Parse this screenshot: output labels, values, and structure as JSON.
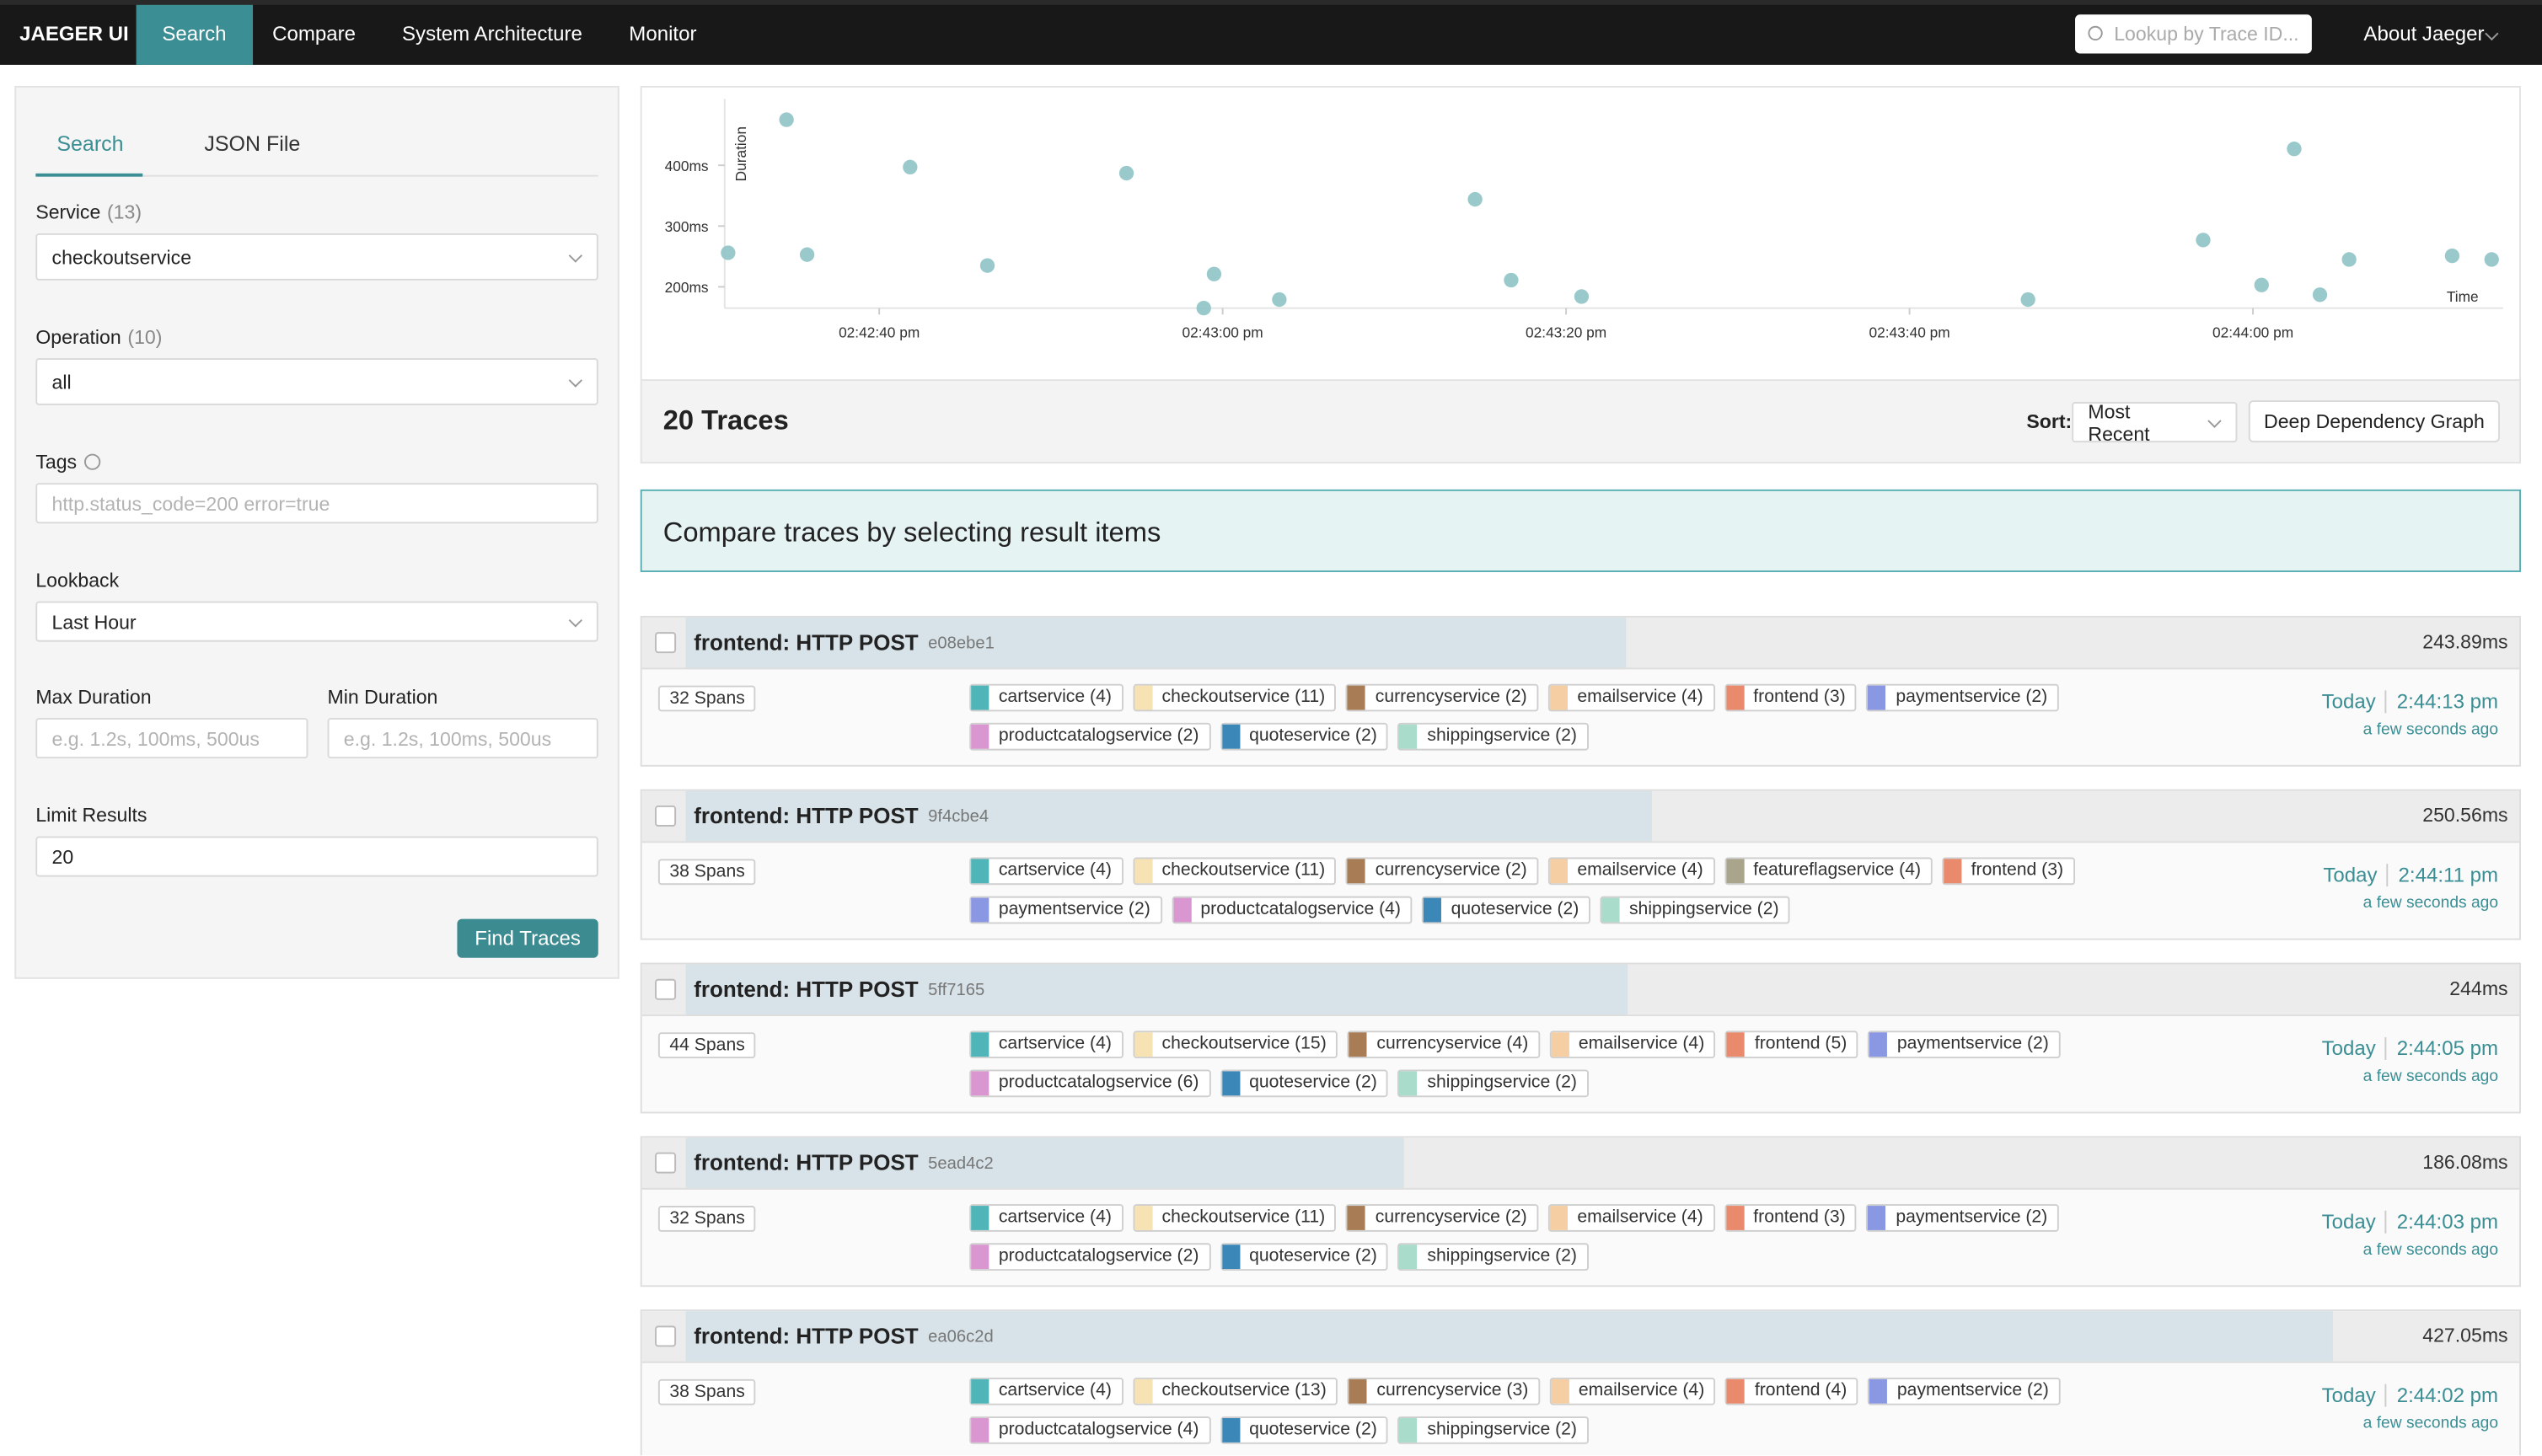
{
  "nav": {
    "brand": "JAEGER UI",
    "tabs": [
      "Search",
      "Compare",
      "System Architecture",
      "Monitor"
    ],
    "lookup_placeholder": "Lookup by Trace ID...",
    "about": "About Jaeger"
  },
  "search_panel": {
    "tabs": [
      "Search",
      "JSON File"
    ],
    "service_label": "Service",
    "service_count": "(13)",
    "service_value": "checkoutservice",
    "operation_label": "Operation",
    "operation_count": "(10)",
    "operation_value": "all",
    "tags_label": "Tags",
    "tags_placeholder": "http.status_code=200 error=true",
    "lookback_label": "Lookback",
    "lookback_value": "Last Hour",
    "max_duration_label": "Max Duration",
    "max_duration_placeholder": "e.g. 1.2s, 100ms, 500us",
    "min_duration_label": "Min Duration",
    "min_duration_placeholder": "e.g. 1.2s, 100ms, 500us",
    "limit_label": "Limit Results",
    "limit_value": "20",
    "find_button": "Find Traces"
  },
  "chart_data": {
    "type": "scatter",
    "y_label": "Duration",
    "x_label": "Time",
    "color": "#8fc3c6",
    "xlim": [
      52951,
      53054
    ],
    "ylim": [
      165,
      500
    ],
    "xticks": [
      {
        "value": 52960,
        "label": "02:42:40 pm"
      },
      {
        "value": 52980,
        "label": "02:43:00 pm"
      },
      {
        "value": 53000,
        "label": "02:43:20 pm"
      },
      {
        "value": 53020,
        "label": "02:43:40 pm"
      },
      {
        "value": 53040,
        "label": "02:44:00 pm"
      }
    ],
    "yticks": [
      {
        "value": 200,
        "label": "200ms"
      },
      {
        "value": 300,
        "label": "300ms"
      },
      {
        "value": 400,
        "label": "400ms"
      }
    ],
    "x": [
      52951.2,
      52954.6,
      52955.8,
      52961.8,
      52966.3,
      52974.4,
      52978.9,
      52979.5,
      52983.3,
      52994.7,
      52996.8,
      53000.9,
      53026.9,
      53037.1,
      53040.5,
      53042.4,
      53043.9,
      53045.6,
      53051.6,
      53053.9
    ],
    "values": [
      256,
      475,
      253,
      397,
      235,
      387,
      165,
      221,
      179,
      344,
      211,
      184,
      179,
      277,
      203,
      427,
      187,
      245,
      251,
      245
    ]
  },
  "results": {
    "count_title": "20 Traces",
    "sort_label": "Sort:",
    "sort_value": "Most Recent",
    "ddg_button": "Deep Dependency Graph",
    "compare_banner": "Compare traces by selecting result items",
    "traces": [
      {
        "title": "frontend: HTTP POST",
        "id": "e08ebe1",
        "duration": 243.89,
        "duration_label": "243.89ms",
        "spans": "32 Spans",
        "day": "Today",
        "time": "2:44:13 pm",
        "ago": "a few seconds ago",
        "tags": [
          {
            "label": "cartservice (4)",
            "color": "#4fb5b8"
          },
          {
            "label": "checkoutservice (11)",
            "color": "#f6e2b3"
          },
          {
            "label": "currencyservice (2)",
            "color": "#a87d56"
          },
          {
            "label": "emailservice (4)",
            "color": "#f5cfa3"
          },
          {
            "label": "frontend (3)",
            "color": "#e98a6c"
          },
          {
            "label": "paymentservice (2)",
            "color": "#8a97e2"
          },
          {
            "label": "productcatalogservice (2)",
            "color": "#d996d0"
          },
          {
            "label": "quoteservice (2)",
            "color": "#3b87b8"
          },
          {
            "label": "shippingservice (2)",
            "color": "#a9dccb"
          }
        ]
      },
      {
        "title": "frontend: HTTP POST",
        "id": "9f4cbe4",
        "duration": 250.56,
        "duration_label": "250.56ms",
        "spans": "38 Spans",
        "day": "Today",
        "time": "2:44:11 pm",
        "ago": "a few seconds ago",
        "tags": [
          {
            "label": "cartservice (4)",
            "color": "#4fb5b8"
          },
          {
            "label": "checkoutservice (11)",
            "color": "#f6e2b3"
          },
          {
            "label": "currencyservice (2)",
            "color": "#a87d56"
          },
          {
            "label": "emailservice (4)",
            "color": "#f5cfa3"
          },
          {
            "label": "featureflagservice (4)",
            "color": "#a9a48c"
          },
          {
            "label": "frontend (3)",
            "color": "#e98a6c"
          },
          {
            "label": "paymentservice (2)",
            "color": "#8a97e2"
          },
          {
            "label": "productcatalogservice (4)",
            "color": "#d996d0"
          },
          {
            "label": "quoteservice (2)",
            "color": "#3b87b8"
          },
          {
            "label": "shippingservice (2)",
            "color": "#a9dccb"
          }
        ]
      },
      {
        "title": "frontend: HTTP POST",
        "id": "5ff7165",
        "duration": 244,
        "duration_label": "244ms",
        "spans": "44 Spans",
        "day": "Today",
        "time": "2:44:05 pm",
        "ago": "a few seconds ago",
        "tags": [
          {
            "label": "cartservice (4)",
            "color": "#4fb5b8"
          },
          {
            "label": "checkoutservice (15)",
            "color": "#f6e2b3"
          },
          {
            "label": "currencyservice (4)",
            "color": "#a87d56"
          },
          {
            "label": "emailservice (4)",
            "color": "#f5cfa3"
          },
          {
            "label": "frontend (5)",
            "color": "#e98a6c"
          },
          {
            "label": "paymentservice (2)",
            "color": "#8a97e2"
          },
          {
            "label": "productcatalogservice (6)",
            "color": "#d996d0"
          },
          {
            "label": "quoteservice (2)",
            "color": "#3b87b8"
          },
          {
            "label": "shippingservice (2)",
            "color": "#a9dccb"
          }
        ]
      },
      {
        "title": "frontend: HTTP POST",
        "id": "5ead4c2",
        "duration": 186.08,
        "duration_label": "186.08ms",
        "spans": "32 Spans",
        "day": "Today",
        "time": "2:44:03 pm",
        "ago": "a few seconds ago",
        "tags": [
          {
            "label": "cartservice (4)",
            "color": "#4fb5b8"
          },
          {
            "label": "checkoutservice (11)",
            "color": "#f6e2b3"
          },
          {
            "label": "currencyservice (2)",
            "color": "#a87d56"
          },
          {
            "label": "emailservice (4)",
            "color": "#f5cfa3"
          },
          {
            "label": "frontend (3)",
            "color": "#e98a6c"
          },
          {
            "label": "paymentservice (2)",
            "color": "#8a97e2"
          },
          {
            "label": "productcatalogservice (2)",
            "color": "#d996d0"
          },
          {
            "label": "quoteservice (2)",
            "color": "#3b87b8"
          },
          {
            "label": "shippingservice (2)",
            "color": "#a9dccb"
          }
        ]
      },
      {
        "title": "frontend: HTTP POST",
        "id": "ea06c2d",
        "duration": 427.05,
        "duration_label": "427.05ms",
        "spans": "38 Spans",
        "day": "Today",
        "time": "2:44:02 pm",
        "ago": "a few seconds ago",
        "tags": [
          {
            "label": "cartservice (4)",
            "color": "#4fb5b8"
          },
          {
            "label": "checkoutservice (13)",
            "color": "#f6e2b3"
          },
          {
            "label": "currencyservice (3)",
            "color": "#a87d56"
          },
          {
            "label": "emailservice (4)",
            "color": "#f5cfa3"
          },
          {
            "label": "frontend (4)",
            "color": "#e98a6c"
          },
          {
            "label": "paymentservice (2)",
            "color": "#8a97e2"
          },
          {
            "label": "productcatalogservice (4)",
            "color": "#d996d0"
          },
          {
            "label": "quoteservice (2)",
            "color": "#3b87b8"
          },
          {
            "label": "shippingservice (2)",
            "color": "#a9dccb"
          }
        ]
      }
    ]
  }
}
